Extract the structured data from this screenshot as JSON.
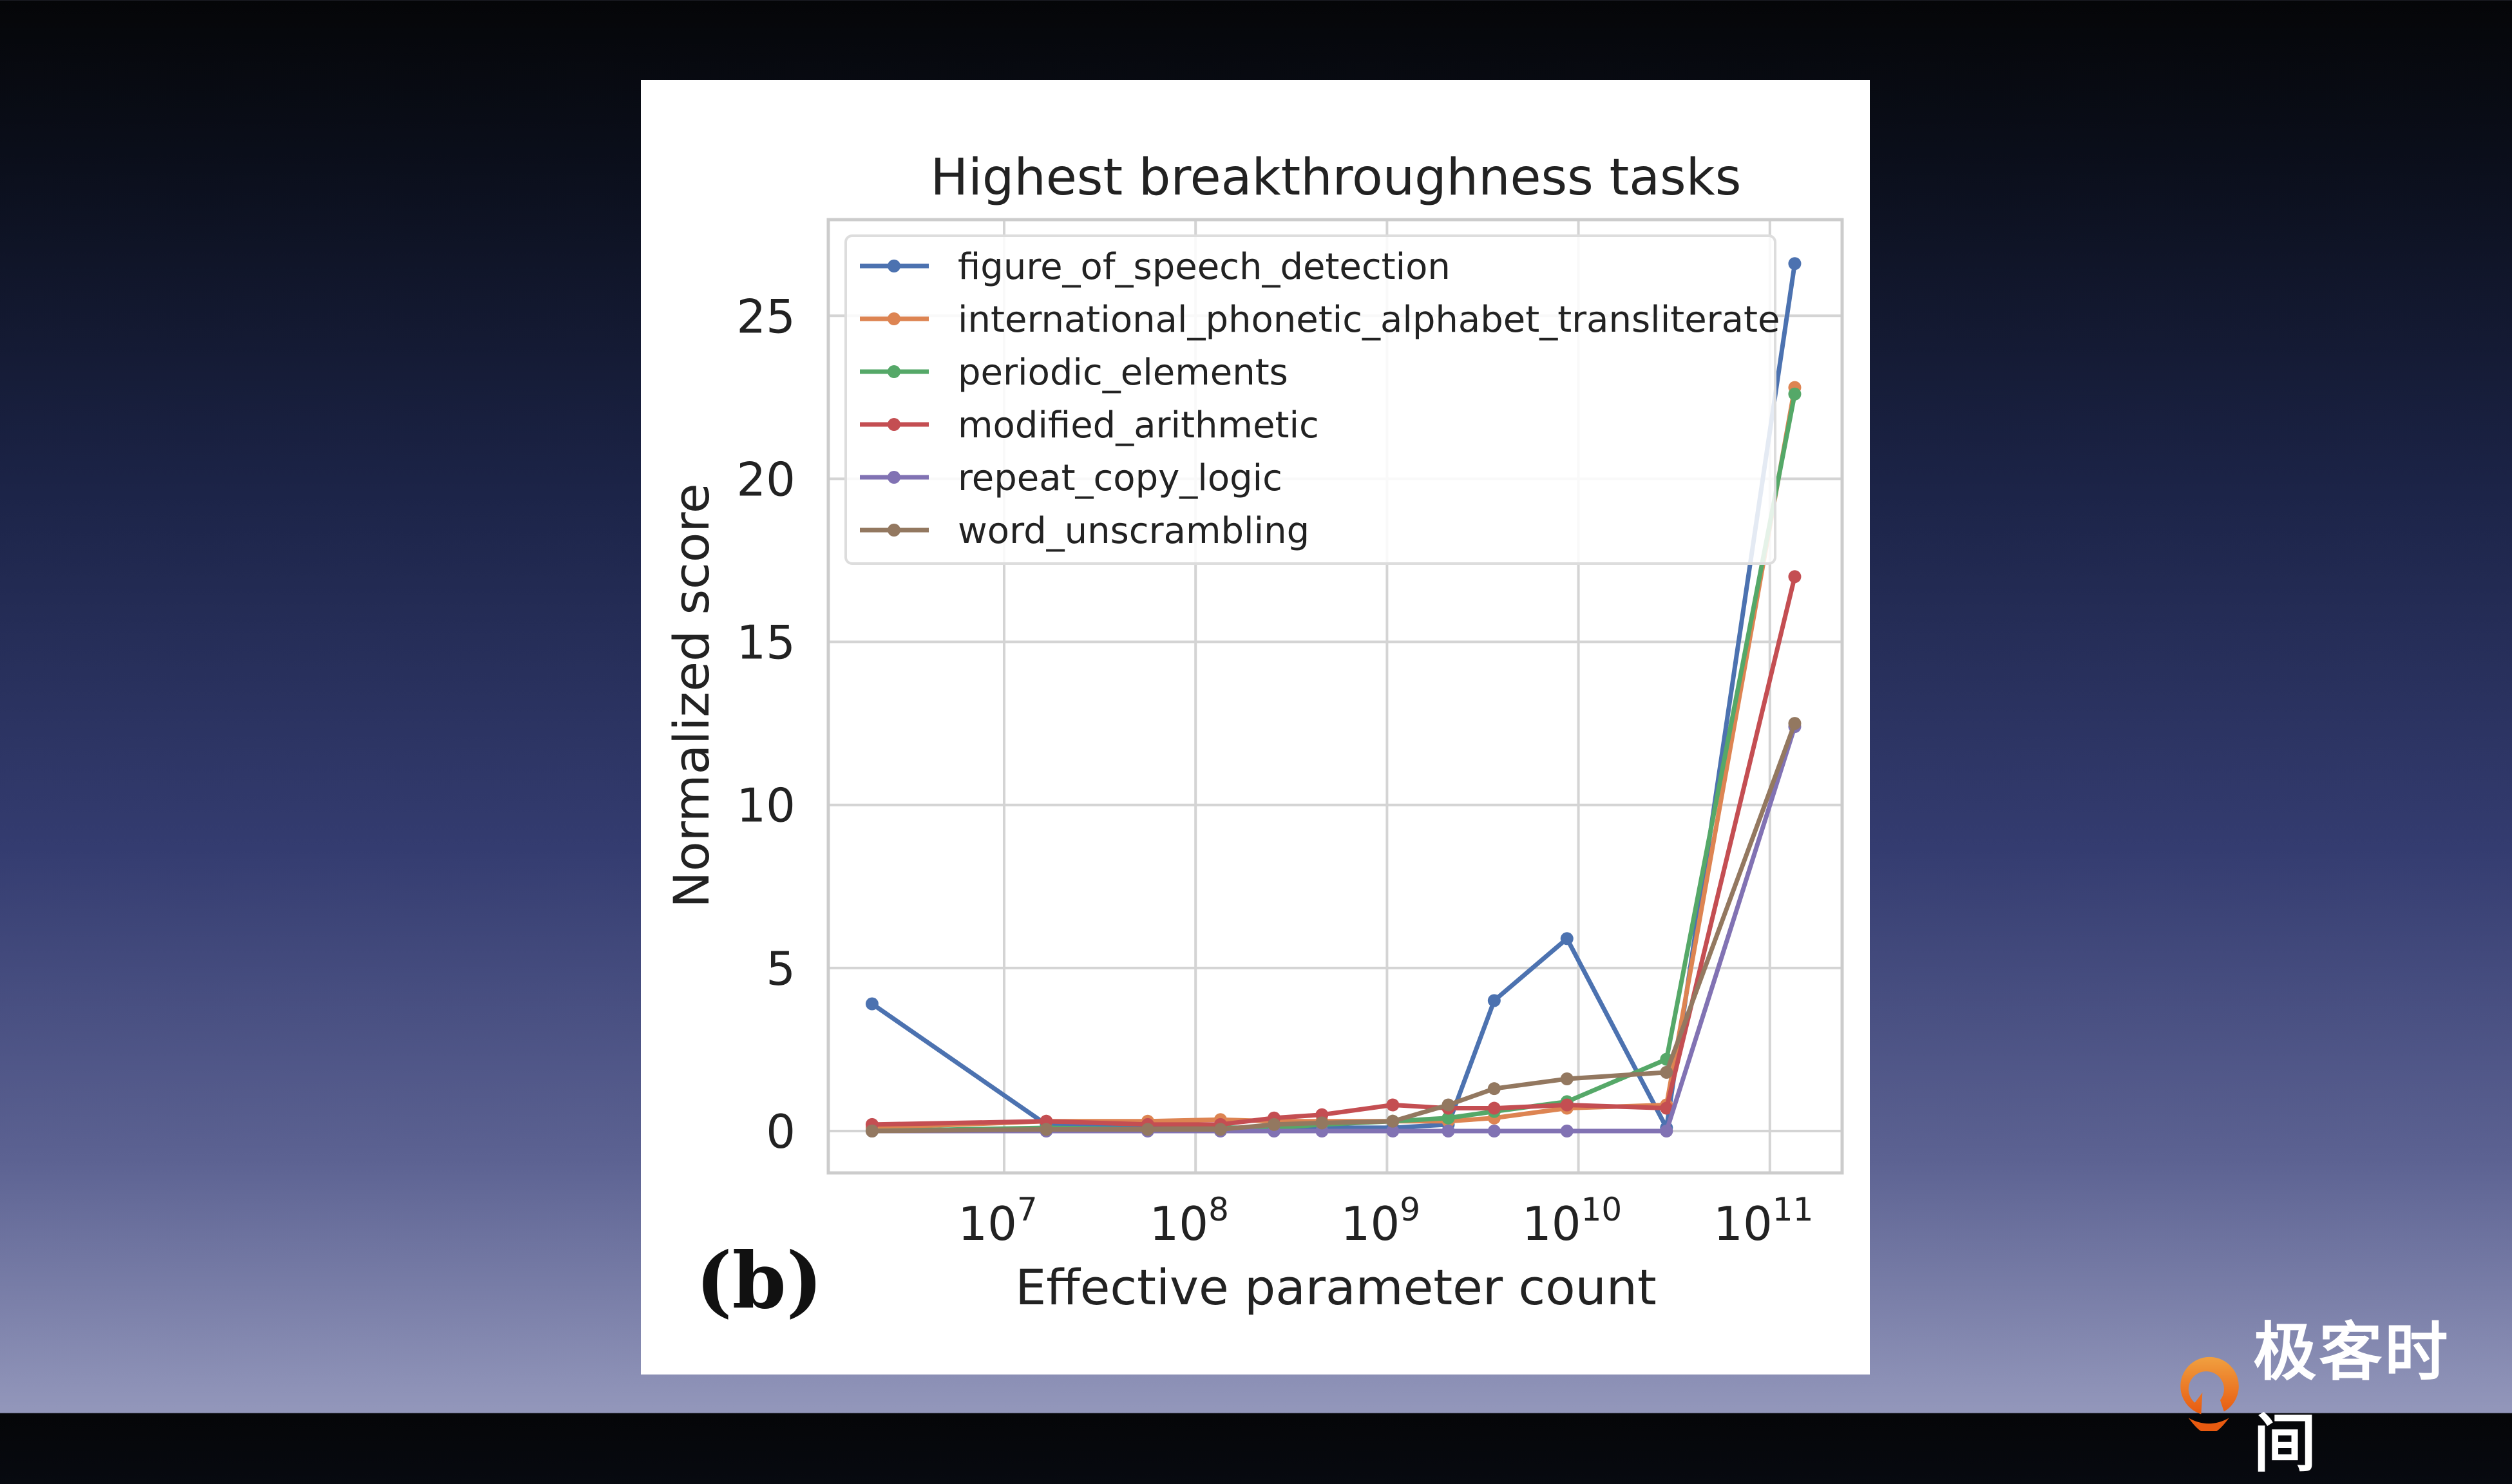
{
  "chart_data": {
    "type": "line",
    "title": "Highest breakthroughness tasks",
    "xlabel": "Effective parameter count",
    "ylabel": "Normalized score",
    "xscale": "log",
    "xlim_log10": [
      6.1,
      11.4
    ],
    "ylim": [
      -1.3,
      28
    ],
    "xticks": [
      {
        "value_log10": 7,
        "base": "10",
        "exp": "7"
      },
      {
        "value_log10": 8,
        "base": "10",
        "exp": "8"
      },
      {
        "value_log10": 9,
        "base": "10",
        "exp": "9"
      },
      {
        "value_log10": 10,
        "base": "10",
        "exp": "10"
      },
      {
        "value_log10": 11,
        "base": "10",
        "exp": "11"
      }
    ],
    "yticks": [
      0,
      5,
      10,
      15,
      20,
      25
    ],
    "grid": true,
    "legend_position": "top-left",
    "panel_label": "(b)",
    "x_log10": [
      6.31,
      7.22,
      7.75,
      8.13,
      8.41,
      8.66,
      9.03,
      9.32,
      9.56,
      9.94,
      10.46,
      11.13
    ],
    "series": [
      {
        "name": "figure_of_speech_detection",
        "color": "#4c72b0",
        "values": [
          3.9,
          0.2,
          0.1,
          0.1,
          0.1,
          0.1,
          0.1,
          0.2,
          4.0,
          5.9,
          0.1,
          26.6
        ]
      },
      {
        "name": "international_phonetic_alphabet_transliterate",
        "color": "#dd8452",
        "values": [
          0.1,
          0.3,
          0.3,
          0.35,
          0.3,
          0.3,
          0.3,
          0.3,
          0.4,
          0.7,
          0.8,
          22.8
        ]
      },
      {
        "name": "periodic_elements",
        "color": "#55a868",
        "values": [
          0.0,
          0.1,
          0.05,
          0.1,
          0.1,
          0.2,
          0.3,
          0.4,
          0.6,
          0.9,
          2.2,
          22.6
        ]
      },
      {
        "name": "modified_arithmetic",
        "color": "#c44e52",
        "values": [
          0.2,
          0.3,
          0.2,
          0.2,
          0.4,
          0.5,
          0.8,
          0.7,
          0.7,
          0.8,
          0.7,
          17.0
        ]
      },
      {
        "name": "repeat_copy_logic",
        "color": "#8172b3",
        "values": [
          0,
          0,
          0,
          0,
          0,
          0,
          0,
          0,
          0,
          0,
          0,
          12.4
        ]
      },
      {
        "name": "word_unscrambling",
        "color": "#937860",
        "values": [
          0.0,
          0.05,
          0.05,
          0.05,
          0.2,
          0.25,
          0.3,
          0.8,
          1.3,
          1.6,
          1.8,
          12.5
        ]
      }
    ]
  },
  "watermark": {
    "text": "极客时间",
    "color": "#e8621a"
  }
}
